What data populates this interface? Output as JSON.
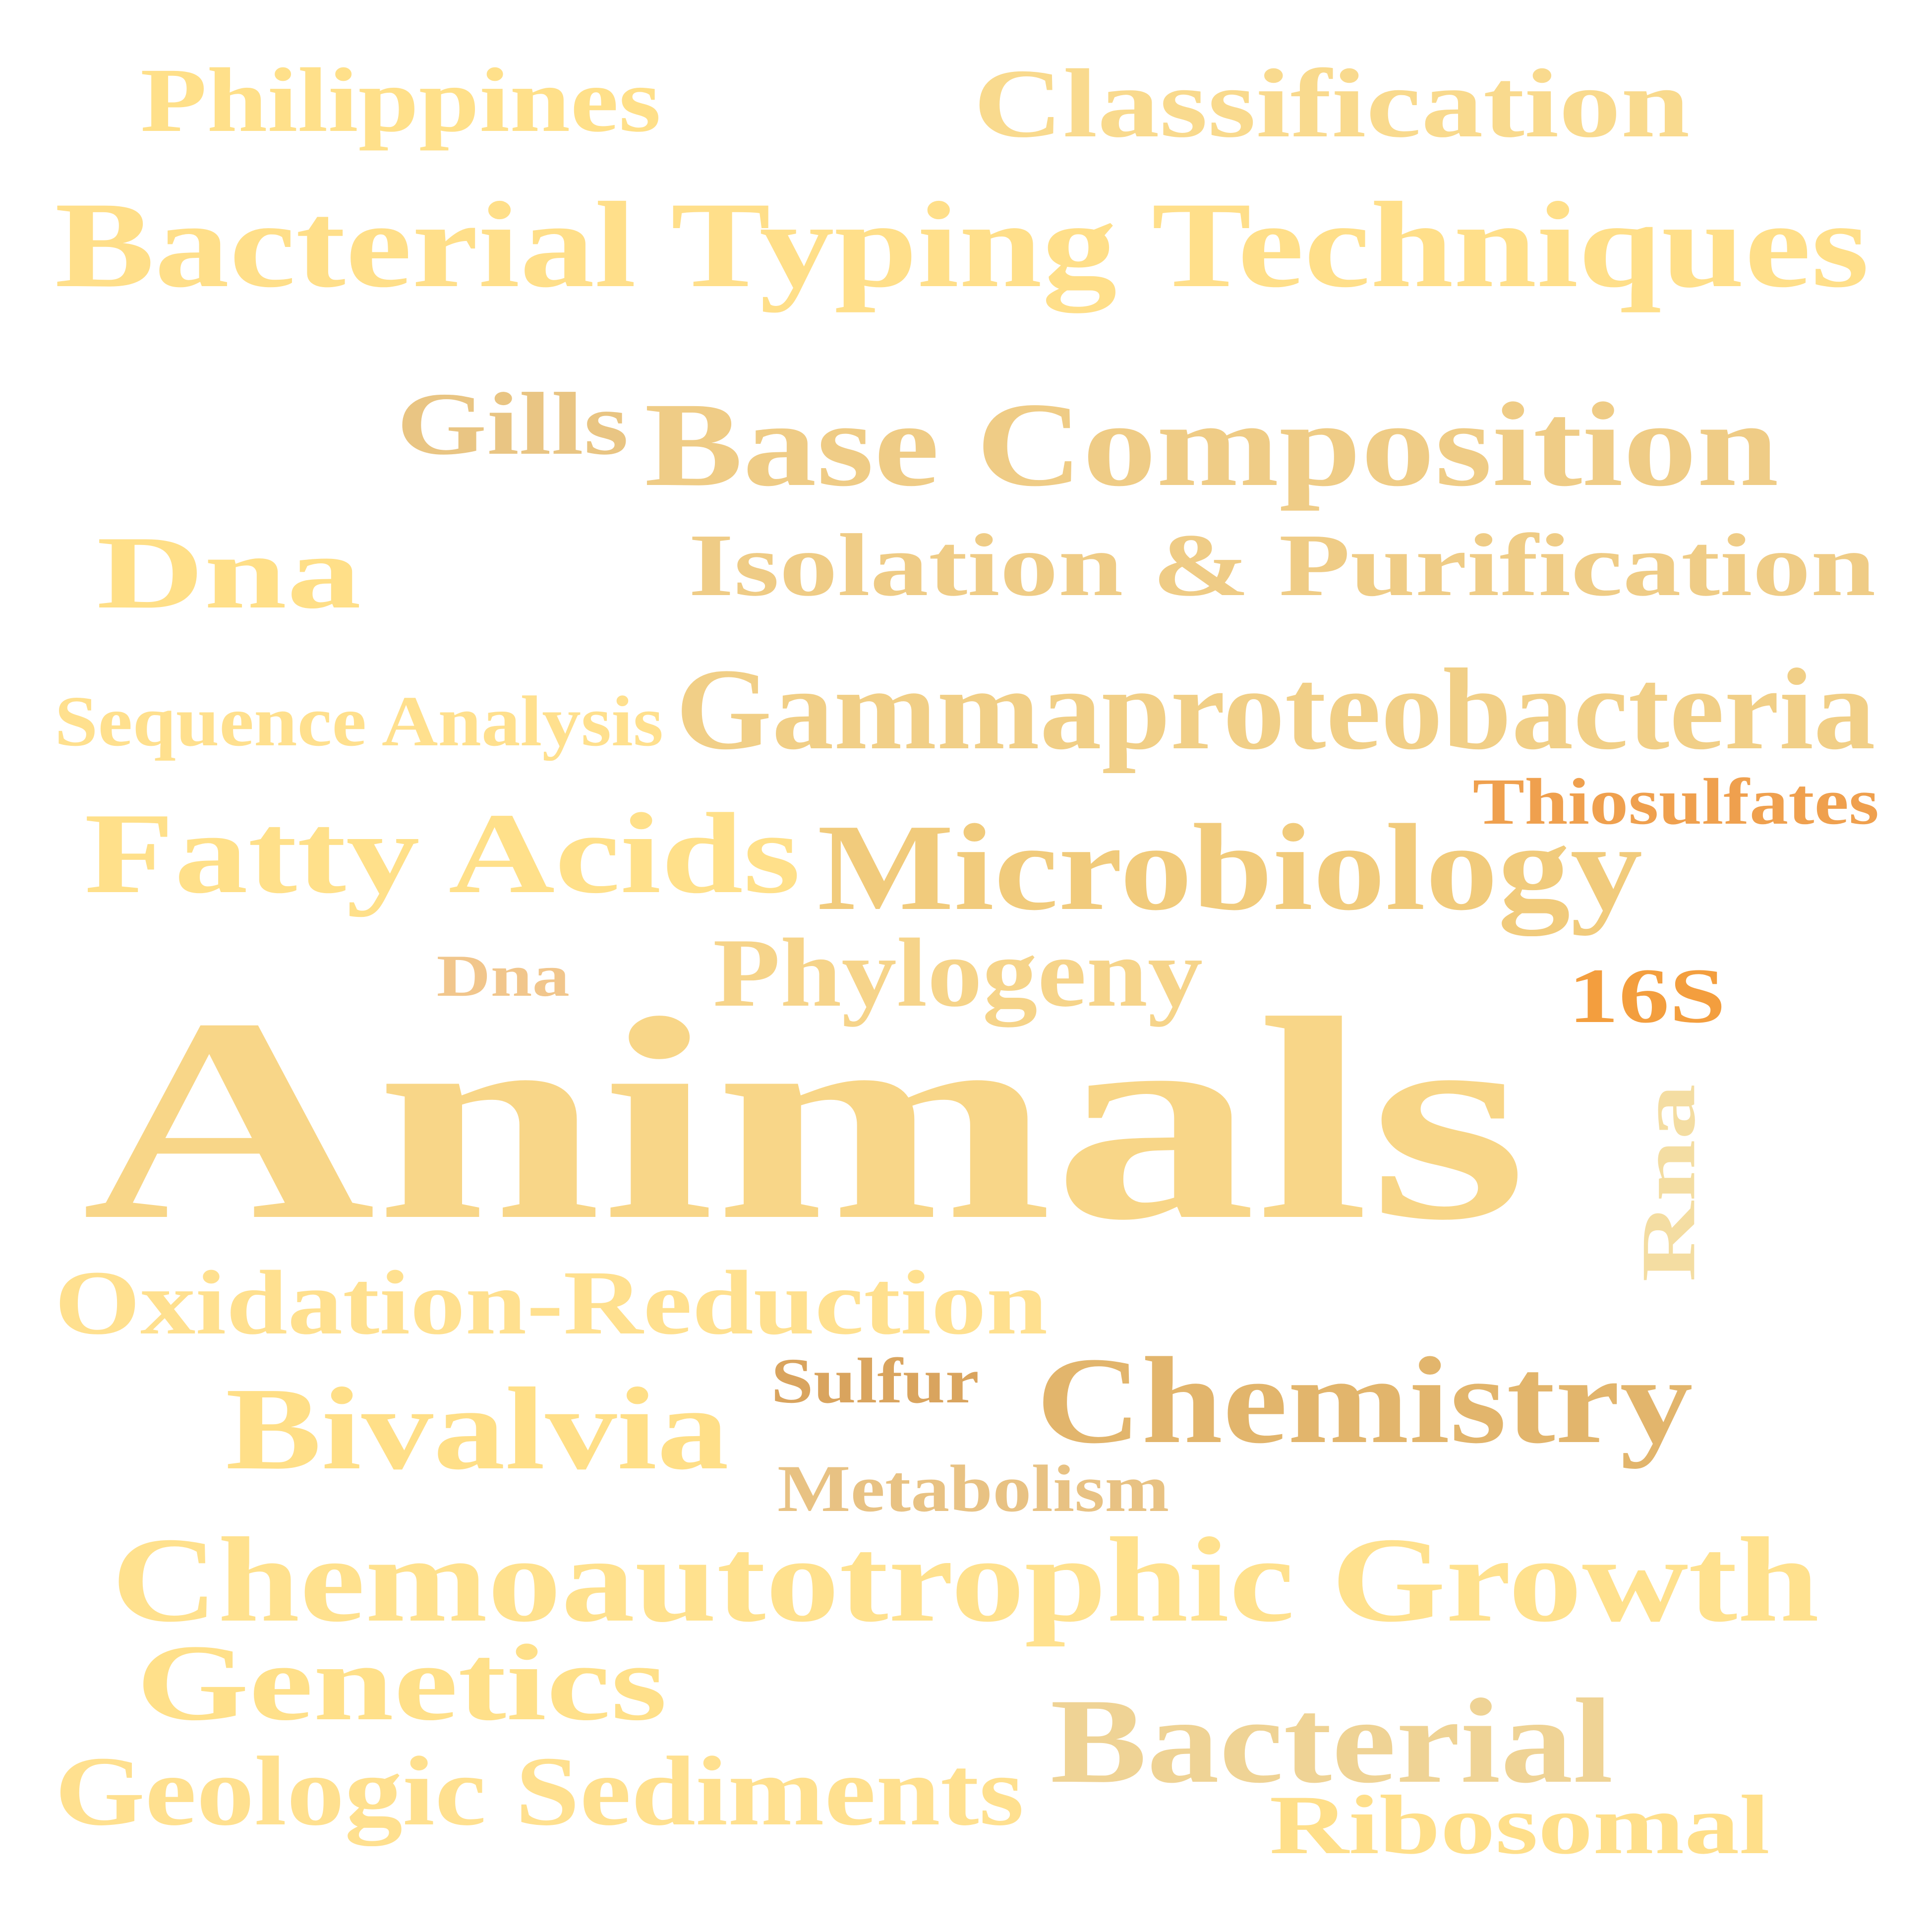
{
  "words": [
    {
      "text": "Philippines",
      "color": "#FFE08A"
    },
    {
      "text": "Classification",
      "color": "#F9DA8E"
    },
    {
      "text": "Bacterial Typing Techniques",
      "color": "#FFDF8A"
    },
    {
      "text": "Gills",
      "color": "#E9C583"
    },
    {
      "text": "Base Composition",
      "color": "#EFCC86"
    },
    {
      "text": "Dna",
      "color": "#FFDF88"
    },
    {
      "text": "Isolation & Purification",
      "color": "#EFCC86"
    },
    {
      "text": "Sequence Analysis",
      "color": "#FFE08E"
    },
    {
      "text": "Gammaproteobacteria",
      "color": "#F1CF87"
    },
    {
      "text": "Thiosulfates",
      "color": "#EFA04E"
    },
    {
      "text": "Fatty Acids",
      "color": "#FFE08A"
    },
    {
      "text": "Microbiology",
      "color": "#F1CB7C"
    },
    {
      "text": "Dna",
      "color": "#F1C68C"
    },
    {
      "text": "Phylogeny",
      "color": "#F6D48A"
    },
    {
      "text": "16S",
      "color": "#F39E3E"
    },
    {
      "text": "Animals",
      "color": "#F8D688"
    },
    {
      "text": "Rna",
      "color": "#F4DDA2"
    },
    {
      "text": "Oxidation-Reduction",
      "color": "#FFE08F"
    },
    {
      "text": "Sulfur",
      "color": "#D9A45E"
    },
    {
      "text": "Chemistry",
      "color": "#E2B56C"
    },
    {
      "text": "Bivalvia",
      "color": "#FFDF88"
    },
    {
      "text": "Metabolism",
      "color": "#E8C283"
    },
    {
      "text": "Chemoautotrophic Growth",
      "color": "#FFE18E"
    },
    {
      "text": "Genetics",
      "color": "#FFE08A"
    },
    {
      "text": "Bacterial",
      "color": "#EFD395"
    },
    {
      "text": "Geologic Sediments",
      "color": "#FFE08F"
    },
    {
      "text": "Ribosomal",
      "color": "#FFDF8A"
    }
  ]
}
